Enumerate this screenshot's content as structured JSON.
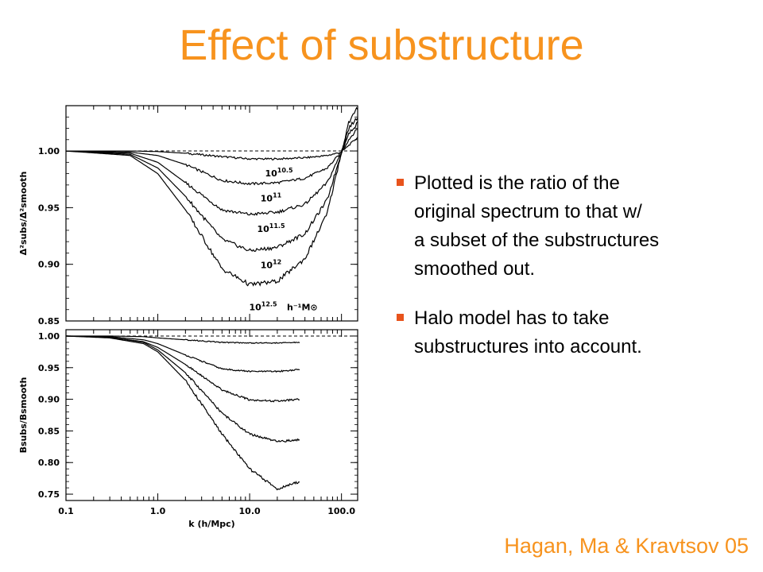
{
  "slide": {
    "title": "Effect of substructure",
    "citation": "Hagan, Ma & Kravtsov 05",
    "accent_color": "#f7931e",
    "bullet_color": "#e8531c",
    "bullets": [
      {
        "lines": [
          "Plotted is the ratio of the",
          "original spectrum to that w/",
          "a subset of the substructures",
          "smoothed out."
        ]
      },
      {
        "lines": [
          "Halo model has to take",
          "substructures into account."
        ]
      }
    ]
  },
  "chart_data": [
    {
      "type": "line",
      "x_scale": "log",
      "xlim": [
        0.1,
        150
      ],
      "ylim": [
        0.85,
        1.04
      ],
      "yticks": [
        "1.00",
        "0.95",
        "0.90",
        "0.85"
      ],
      "ylabel": "Δ²subs/Δ²smooth",
      "reference_line": 1.0,
      "mass_unit_label": "h⁻¹M⊙",
      "series": [
        {
          "name": "10^10.5",
          "base": "10",
          "exp": "10.5",
          "x": [
            0.1,
            0.5,
            1,
            2,
            5,
            10,
            20,
            40,
            70,
            100,
            120,
            150
          ],
          "y": [
            1.0,
            1.0,
            0.9995,
            0.998,
            0.995,
            0.993,
            0.993,
            0.994,
            0.996,
            0.999,
            1.005,
            1.012
          ]
        },
        {
          "name": "10^11",
          "base": "10",
          "exp": "11",
          "x": [
            0.1,
            0.5,
            1,
            2,
            5,
            10,
            20,
            40,
            70,
            100,
            120,
            150
          ],
          "y": [
            1.0,
            0.999,
            0.996,
            0.988,
            0.974,
            0.971,
            0.972,
            0.976,
            0.985,
            0.999,
            1.01,
            1.02
          ]
        },
        {
          "name": "10^11.5",
          "base": "10",
          "exp": "11.5",
          "x": [
            0.1,
            0.5,
            1,
            2,
            5,
            10,
            20,
            40,
            70,
            100,
            120,
            150
          ],
          "y": [
            1.0,
            0.998,
            0.99,
            0.972,
            0.948,
            0.944,
            0.946,
            0.953,
            0.972,
            0.999,
            1.015,
            1.025
          ]
        },
        {
          "name": "10^12",
          "base": "10",
          "exp": "12",
          "x": [
            0.1,
            0.5,
            1,
            2,
            5,
            10,
            20,
            40,
            70,
            100,
            120,
            150
          ],
          "y": [
            1.0,
            0.997,
            0.985,
            0.96,
            0.922,
            0.912,
            0.915,
            0.927,
            0.957,
            0.999,
            1.02,
            1.03
          ]
        },
        {
          "name": "10^12.5",
          "base": "10",
          "exp": "12.5",
          "x": [
            0.1,
            0.5,
            1,
            2,
            5,
            10,
            20,
            40,
            70,
            100,
            120,
            150
          ],
          "y": [
            1.0,
            0.996,
            0.98,
            0.948,
            0.896,
            0.882,
            0.885,
            0.905,
            0.945,
            0.999,
            1.025,
            1.038
          ]
        }
      ]
    },
    {
      "type": "line",
      "x_scale": "log",
      "xlim": [
        0.1,
        150
      ],
      "ylim": [
        0.74,
        1.01
      ],
      "xticks": [
        "0.1",
        "1.0",
        "10.0",
        "100.0"
      ],
      "yticks": [
        "1.00",
        "0.95",
        "0.90",
        "0.85",
        "0.80",
        "0.75"
      ],
      "xlabel": "k (h/Mpc)",
      "ylabel": "Bsubs/Bsmooth",
      "reference_line": 1.0,
      "series": [
        {
          "x": [
            0.1,
            0.3,
            0.7,
            1,
            2,
            5,
            10,
            20,
            35
          ],
          "y": [
            1.0,
            1.0,
            0.999,
            0.997,
            0.994,
            0.99,
            0.989,
            0.989,
            0.99
          ]
        },
        {
          "x": [
            0.1,
            0.3,
            0.7,
            1,
            2,
            5,
            10,
            20,
            35
          ],
          "y": [
            1.0,
            0.999,
            0.994,
            0.988,
            0.97,
            0.948,
            0.944,
            0.944,
            0.947
          ]
        },
        {
          "x": [
            0.1,
            0.3,
            0.7,
            1,
            2,
            5,
            10,
            20,
            35
          ],
          "y": [
            1.0,
            0.998,
            0.991,
            0.982,
            0.955,
            0.915,
            0.899,
            0.897,
            0.9
          ]
        },
        {
          "x": [
            0.1,
            0.3,
            0.7,
            1,
            2,
            5,
            10,
            20,
            35
          ],
          "y": [
            1.0,
            0.998,
            0.99,
            0.978,
            0.942,
            0.878,
            0.845,
            0.833,
            0.836
          ]
        },
        {
          "x": [
            0.1,
            0.3,
            0.7,
            1,
            2,
            5,
            10,
            20,
            35
          ],
          "y": [
            1.0,
            0.997,
            0.988,
            0.975,
            0.93,
            0.845,
            0.79,
            0.758,
            0.77
          ]
        }
      ]
    }
  ]
}
